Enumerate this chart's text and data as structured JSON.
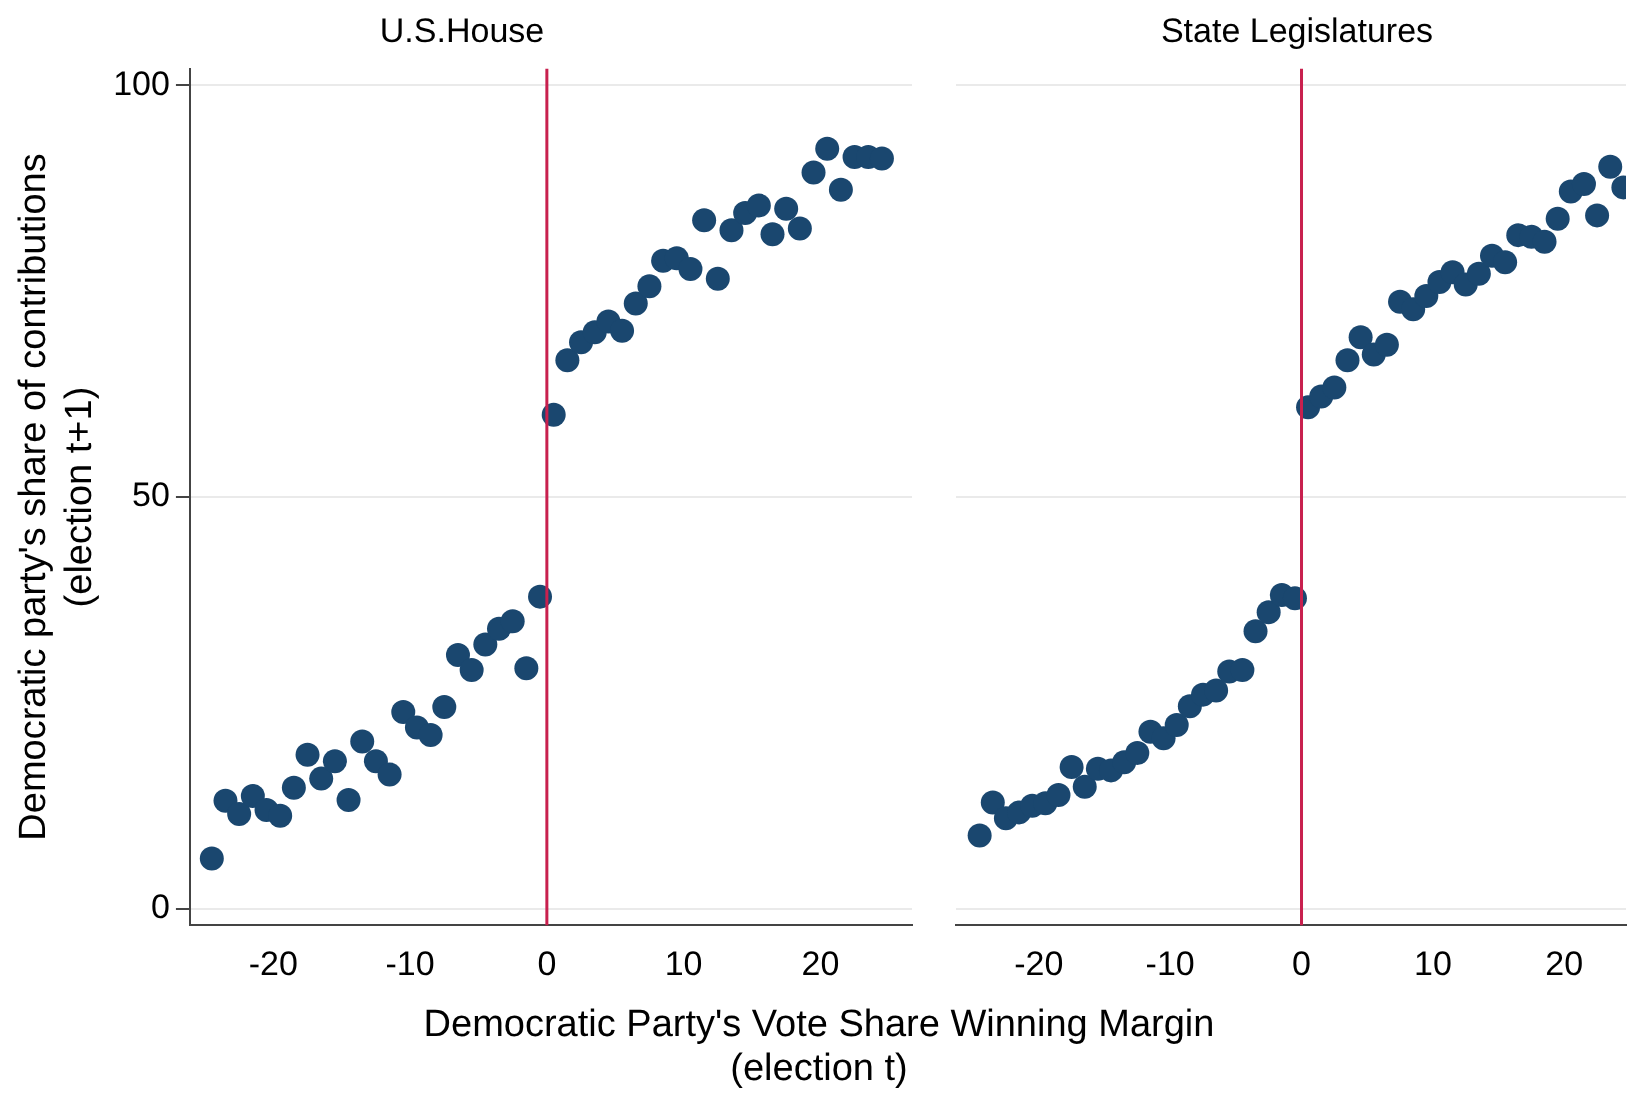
{
  "chart_data": [
    {
      "type": "scatter",
      "title": "U.S.House",
      "xlabel": "Democratic Party's Vote Share Winning Margin\n(election t)",
      "ylabel": "Democratic party's share of contributions\n(election t+1)",
      "xlim": [
        -26.1,
        26.7
      ],
      "xticks": [
        -20,
        -10,
        0,
        10,
        20
      ],
      "ylim": [
        -2,
        102
      ],
      "yticks": [
        0,
        50,
        100
      ],
      "grid": "y",
      "marker": "circle",
      "legend": false,
      "ref_lines": [
        {
          "axis": "x",
          "value": 0,
          "color": "#c8204e"
        }
      ],
      "series": [
        {
          "color": "#1a476f",
          "x": [
            -24.5,
            -23.5,
            -22.5,
            -21.5,
            -20.5,
            -19.5,
            -18.5,
            -17.5,
            -16.5,
            -15.5,
            -14.5,
            -13.5,
            -12.5,
            -11.5,
            -10.5,
            -9.5,
            -8.5,
            -7.5,
            -6.5,
            -5.5,
            -4.5,
            -3.5,
            -2.5,
            -1.5,
            -0.5
          ],
          "values": [
            6.1,
            13.1,
            11.5,
            13.7,
            12.0,
            11.3,
            14.7,
            18.7,
            15.8,
            17.9,
            13.2,
            20.3,
            17.9,
            16.3,
            23.9,
            22.0,
            21.1,
            24.5,
            30.8,
            29.0,
            32.1,
            34.0,
            34.9,
            29.2,
            37.9
          ]
        },
        {
          "color": "#1a476f",
          "x": [
            0.5,
            1.5,
            2.5,
            3.5,
            4.5,
            5.5,
            6.5,
            7.5,
            8.5,
            9.5,
            10.5,
            11.5,
            12.5,
            13.5,
            14.5,
            15.5,
            16.5,
            17.5,
            18.5,
            19.5,
            20.5,
            21.5,
            22.5,
            23.5,
            24.5
          ],
          "values": [
            60.0,
            66.6,
            68.8,
            70.0,
            71.3,
            70.2,
            73.5,
            75.6,
            78.7,
            79.0,
            77.7,
            83.6,
            76.5,
            82.4,
            84.5,
            85.4,
            81.9,
            85.0,
            82.6,
            89.4,
            92.3,
            87.3,
            91.3,
            91.3,
            91.1
          ]
        }
      ]
    },
    {
      "type": "scatter",
      "title": "State Legislatures",
      "xlim": [
        -26.3,
        24.7
      ],
      "xticks": [
        -20,
        -10,
        0,
        10,
        20
      ],
      "ylim": [
        -2,
        102
      ],
      "yticks": [
        0,
        50,
        100
      ],
      "grid": "y",
      "marker": "circle",
      "legend": false,
      "tick_labels": "x",
      "ref_lines": [
        {
          "axis": "x",
          "value": 0,
          "color": "#c8204e"
        }
      ],
      "series": [
        {
          "color": "#1a476f",
          "x": [
            -24.5,
            -23.5,
            -22.5,
            -21.5,
            -20.5,
            -19.5,
            -18.5,
            -17.5,
            -16.5,
            -15.5,
            -14.5,
            -13.5,
            -12.5,
            -11.5,
            -10.5,
            -9.5,
            -8.5,
            -7.5,
            -6.5,
            -5.5,
            -4.5,
            -3.5,
            -2.5,
            -1.5,
            -0.5
          ],
          "values": [
            8.9,
            12.9,
            11.0,
            11.7,
            12.5,
            12.8,
            13.8,
            17.2,
            14.8,
            17.0,
            16.8,
            17.8,
            18.9,
            21.5,
            20.7,
            22.3,
            24.6,
            26.0,
            26.5,
            28.8,
            29.0,
            33.7,
            36.0,
            38.1,
            37.7
          ]
        },
        {
          "color": "#1a476f",
          "x": [
            0.5,
            1.5,
            2.5,
            3.5,
            4.5,
            5.5,
            6.5,
            7.5,
            8.5,
            9.5,
            10.5,
            11.5,
            12.5,
            13.5,
            14.5,
            15.5,
            16.5,
            17.5,
            18.5,
            19.5,
            20.5,
            21.5,
            22.5,
            23.5,
            24.5
          ],
          "values": [
            60.9,
            62.2,
            63.3,
            66.6,
            69.4,
            67.3,
            68.5,
            73.7,
            72.8,
            74.4,
            76.1,
            77.3,
            75.8,
            77.1,
            79.3,
            78.5,
            81.8,
            81.6,
            81.0,
            83.8,
            87.1,
            88.0,
            84.2,
            90.1,
            87.6
          ]
        }
      ]
    }
  ]
}
